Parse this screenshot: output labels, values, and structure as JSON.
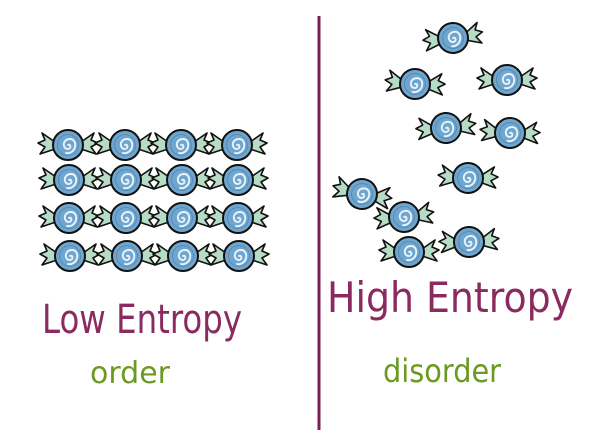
{
  "colors": {
    "divider": "#7a1f50",
    "label_main": "#8b2a5e",
    "label_sub": "#6a9a1f",
    "candy_fill": "#6fa6cf",
    "candy_swirl": "#e9f3fb",
    "wrapper_fill": "#b7dcc6",
    "outline": "#111111"
  },
  "left_panel": {
    "title": "Low Entropy",
    "subtitle": "order",
    "candy_icon": "wrapped-candy-icon",
    "arrangement": {
      "rows": 4,
      "columns": 4
    }
  },
  "right_panel": {
    "title": "High Entropy",
    "subtitle": "disorder",
    "candy_icon": "wrapped-candy-icon",
    "candy_count": 10
  }
}
